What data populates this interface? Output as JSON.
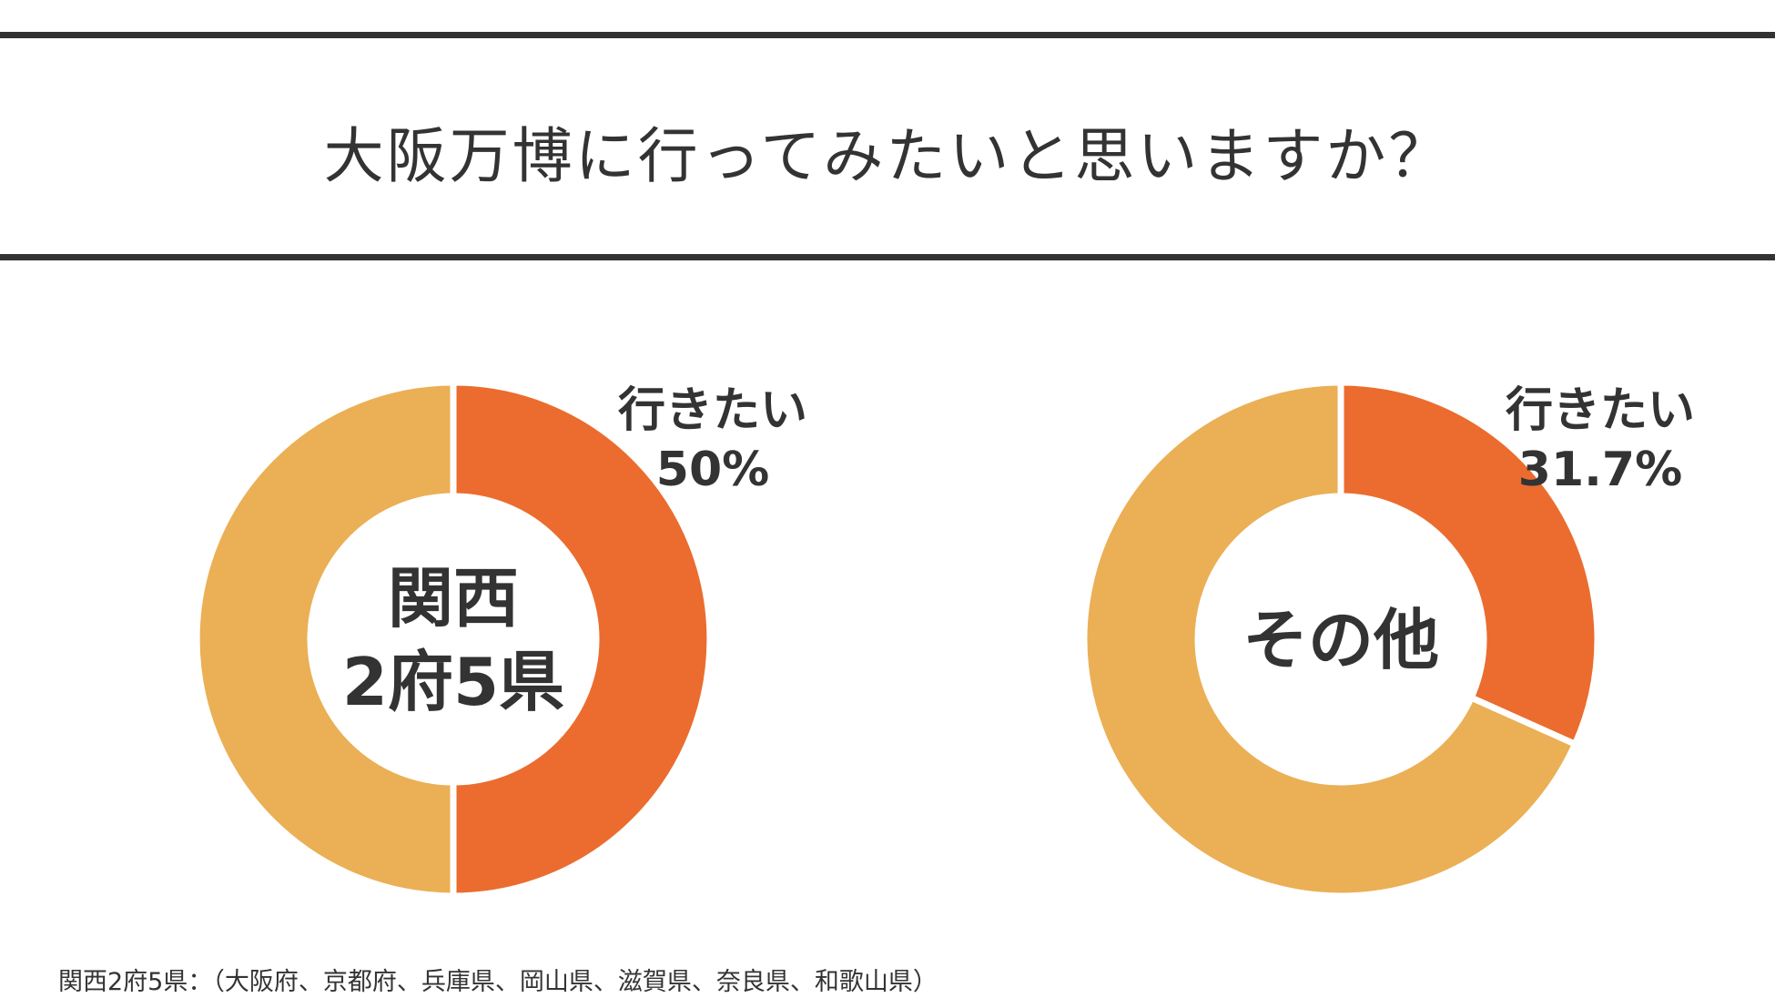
{
  "title": "大阪万博に行ってみたいと思いますか？",
  "colors": {
    "want": "#EB6C2E",
    "other": "#EBAF55",
    "text": "#333333",
    "rule": "#333333"
  },
  "chart_data": [
    {
      "type": "pie",
      "center_label": [
        "関西",
        "2府5県"
      ],
      "slices": [
        {
          "label": "行きたい",
          "value": 50
        },
        {
          "label": "",
          "value": 50
        }
      ],
      "annotation": {
        "label": "行きたい",
        "value_text": "50%"
      }
    },
    {
      "type": "pie",
      "center_label": [
        "その他"
      ],
      "slices": [
        {
          "label": "行きたい",
          "value": 31.7
        },
        {
          "label": "",
          "value": 68.3
        }
      ],
      "annotation": {
        "label": "行きたい",
        "value_text": "31.7%"
      }
    }
  ],
  "footnote": "関西2府5県：（大阪府、京都府、兵庫県、岡山県、滋賀県、奈良県、和歌山県）"
}
